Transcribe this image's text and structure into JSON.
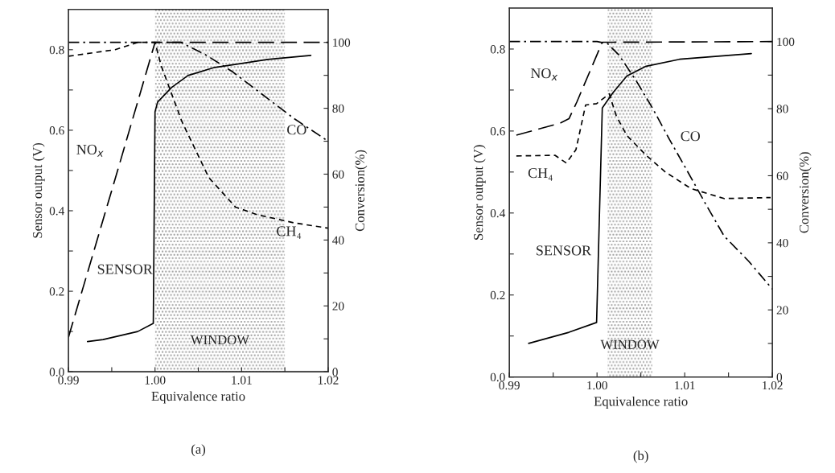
{
  "chart_data": [
    {
      "type": "line",
      "title": "(a)",
      "xlabel": "Equivalence ratio",
      "ylabel": "Sensor output (V)",
      "y2label": "Conversion(%)",
      "xlim": [
        0.99,
        1.02
      ],
      "xticks": [
        0.99,
        {
          "value": 0.995,
          "label": null
        },
        {
          "value": 1.0,
          "label": "1.00"
        },
        {
          "value": 1.005,
          "label": null
        },
        1.01,
        {
          "value": 1.015,
          "label": null
        },
        1.02
      ],
      "ylim": [
        0,
        0.9
      ],
      "yticks": [
        {
          "value": 0,
          "label": "0.0"
        },
        {
          "value": 0.1,
          "label": null
        },
        0.2,
        {
          "value": 0.3,
          "label": null
        },
        0.4,
        {
          "value": 0.5,
          "label": null
        },
        0.6,
        {
          "value": 0.7,
          "label": null
        },
        0.8
      ],
      "y2lim": [
        0,
        110
      ],
      "y2ticks": [
        0,
        {
          "value": 10,
          "label": null
        },
        20,
        {
          "value": 30,
          "label": null
        },
        40,
        {
          "value": 50,
          "label": null
        },
        60,
        {
          "value": 70,
          "label": null
        },
        80,
        {
          "value": 90,
          "label": null
        },
        100
      ],
      "grid": false,
      "legend": false,
      "bands": [
        {
          "axis": "x",
          "from": 1.0,
          "to": 1.015,
          "label": "WINDOW",
          "color": "#9a9a9a"
        }
      ],
      "series": [
        {
          "name": "SENSOR",
          "color": "#000000",
          "line_style": "solid",
          "x": [
            0.9922,
            0.994,
            0.996,
            0.998,
            0.9998,
            1.0,
            1.0003,
            1.0019,
            1.0038,
            1.0069,
            1.01,
            1.013,
            1.018
          ],
          "values": [
            0.075,
            0.08,
            0.09,
            0.1,
            0.12,
            0.646,
            0.67,
            0.706,
            0.736,
            0.756,
            0.766,
            0.776,
            0.786
          ]
        },
        {
          "name": "NO$_{x}$",
          "color": "#000000",
          "line_style": "longdash",
          "axis": "y2",
          "x": [
            0.99,
            0.996,
            1.0,
            1.02
          ],
          "values": [
            10.5,
            64,
            100,
            100
          ]
        },
        {
          "name": "CO",
          "color": "#000000",
          "line_style": "dashdot",
          "axis": "y2",
          "x": [
            0.99,
            1.003,
            1.006,
            1.009,
            1.013,
            1.016,
            1.02
          ],
          "values": [
            100,
            100,
            96,
            91,
            83,
            77,
            70
          ]
        },
        {
          "name": "CH₄",
          "color": "#000000",
          "line_style": "dashed",
          "axis": "y2",
          "x": [
            0.99,
            0.9954,
            0.998,
            1.0,
            1.0007,
            1.0031,
            1.0062,
            1.0093,
            1.0118,
            1.0161,
            1.02
          ],
          "values": [
            95.8,
            97.8,
            100,
            100,
            93,
            76,
            59,
            50,
            47.7,
            45.2,
            43.6
          ]
        }
      ]
    },
    {
      "type": "line",
      "title": "(b)",
      "xlabel": "Equivalence ratio",
      "ylabel": "Sensor output (V)",
      "y2label": "Conversion(%)",
      "xlim": [
        0.99,
        1.02
      ],
      "xticks": [
        0.99,
        {
          "value": 0.995,
          "label": null
        },
        {
          "value": 1.0,
          "label": "1.00"
        },
        {
          "value": 1.005,
          "label": null
        },
        1.01,
        {
          "value": 1.015,
          "label": null
        },
        1.02
      ],
      "ylim": [
        0,
        0.9
      ],
      "yticks": [
        {
          "value": 0,
          "label": "0.0"
        },
        {
          "value": 0.1,
          "label": null
        },
        0.2,
        {
          "value": 0.3,
          "label": null
        },
        0.4,
        {
          "value": 0.5,
          "label": null
        },
        0.6,
        {
          "value": 0.7,
          "label": null
        },
        0.8
      ],
      "y2lim": [
        0,
        110
      ],
      "y2ticks": [
        0,
        {
          "value": 10,
          "label": null
        },
        20,
        {
          "value": 30,
          "label": null
        },
        40,
        {
          "value": 50,
          "label": null
        },
        60,
        {
          "value": 70,
          "label": null
        },
        80,
        {
          "value": 90,
          "label": null
        },
        100
      ],
      "grid": false,
      "legend": false,
      "bands": [
        {
          "axis": "x",
          "from": 1.0012,
          "to": 1.0063,
          "label": "WINDOW",
          "color": "#9a9a9a"
        }
      ],
      "series": [
        {
          "name": "SENSOR",
          "color": "#000000",
          "line_style": "solid",
          "x": [
            0.9922,
            0.9968,
            0.99995,
            1.0006,
            1.0018,
            1.0034,
            1.0056,
            1.0094,
            1.0176
          ],
          "values": [
            0.082,
            0.109,
            0.133,
            0.656,
            0.693,
            0.734,
            0.758,
            0.775,
            0.789
          ]
        },
        {
          "name": "NO$_{x}$",
          "color": "#000000",
          "line_style": "longdash",
          "axis": "y2",
          "x": [
            0.9908,
            0.9958,
            0.9968,
            0.9977,
            1.0006,
            1.02
          ],
          "values": [
            72.1,
            75.7,
            77,
            82,
            99.8,
            100
          ]
        },
        {
          "name": "CO",
          "color": "#000000",
          "line_style": "dashdot",
          "axis": "y2",
          "x": [
            0.99,
            1.0,
            1.0012,
            1.0025,
            1.0044,
            1.0063,
            1.0082,
            1.01,
            1.0123,
            1.0145,
            1.0173,
            1.02
          ],
          "values": [
            100,
            100,
            99.4,
            96,
            88.6,
            80.3,
            71.1,
            62.8,
            52,
            42,
            34.5,
            26.2
          ]
        },
        {
          "name": "CH₄",
          "color": "#000000",
          "line_style": "dashed",
          "axis": "y2",
          "x": [
            0.9908,
            0.9952,
            0.9965,
            0.9976,
            0.9987,
            0.99995,
            1.0014,
            1.0022,
            1.0034,
            1.0056,
            1.0078,
            1.0107,
            1.0145,
            1.0198
          ],
          "values": [
            65.9,
            66.1,
            63.8,
            67.8,
            81.1,
            81.5,
            84.4,
            77.8,
            72,
            66.1,
            61.1,
            56.2,
            53.2,
            53.5
          ]
        }
      ]
    }
  ]
}
